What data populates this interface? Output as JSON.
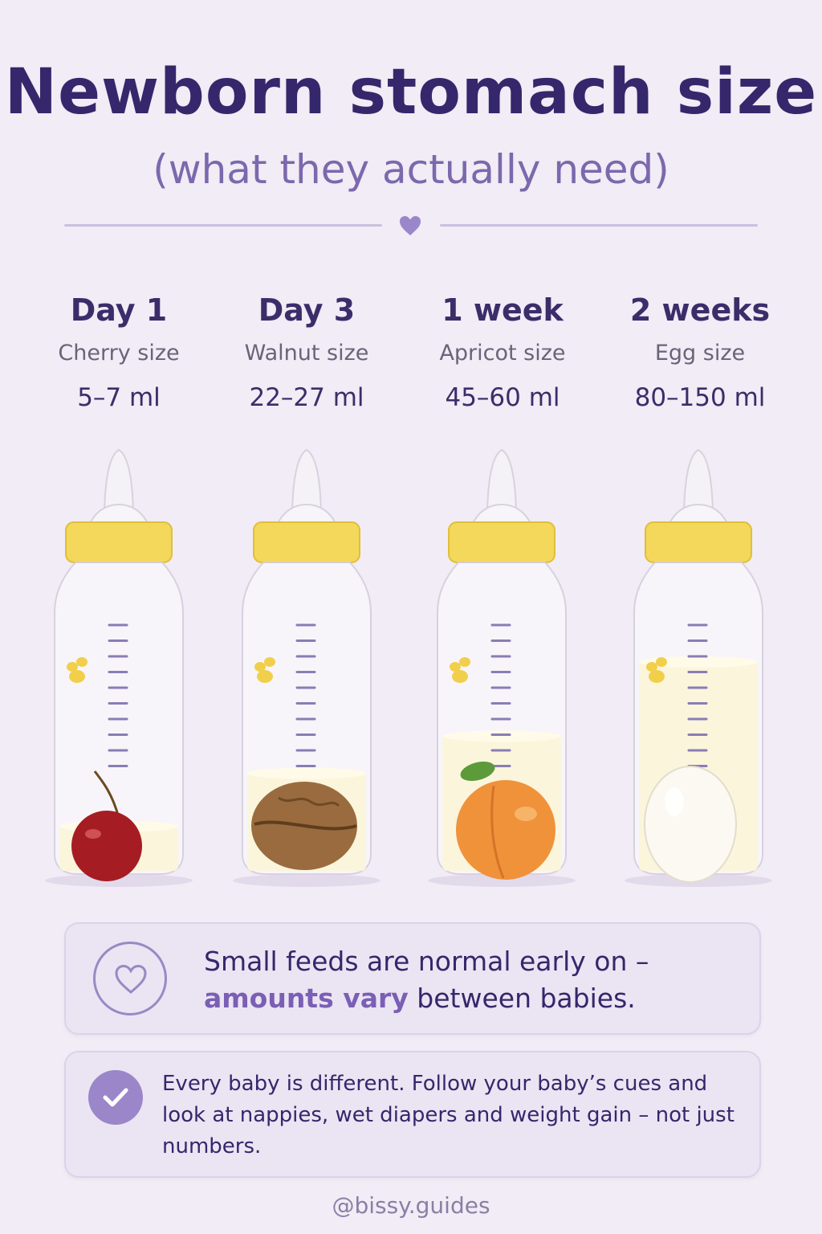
{
  "header": {
    "title": "Newborn stomach size",
    "subtitle": "(what they actually need)"
  },
  "stages": [
    {
      "day": "Day 1",
      "size": "Cherry size",
      "amount": "5–7 ml",
      "fill": 0.18,
      "item": "cherry-icon"
    },
    {
      "day": "Day 3",
      "size": "Walnut size",
      "amount": "22–27 ml",
      "fill": 0.38,
      "item": "walnut-icon"
    },
    {
      "day": "1 week",
      "size": "Apricot size",
      "amount": "45–60 ml",
      "fill": 0.52,
      "item": "apricot-icon"
    },
    {
      "day": "2 weeks",
      "size": "Egg size",
      "amount": "80–150 ml",
      "fill": 0.8,
      "item": "egg-icon"
    }
  ],
  "note": {
    "line_start": "Small feeds are normal early on –",
    "highlight": "amounts vary",
    "line_end": "between babies.",
    "icon": "heart-icon"
  },
  "tip": {
    "text": "Every baby is different. Follow your baby’s cues and look at nappies, wet diapers and weight gain – not just numbers.",
    "icon": "check-icon"
  },
  "footer": {
    "handle": "@bissy.guides"
  },
  "colors": {
    "title": "#35276b",
    "accent": "#7c68ad",
    "cap": "#f3d85c",
    "milk": "#fbf5dc",
    "background": "#f1ecf5"
  }
}
